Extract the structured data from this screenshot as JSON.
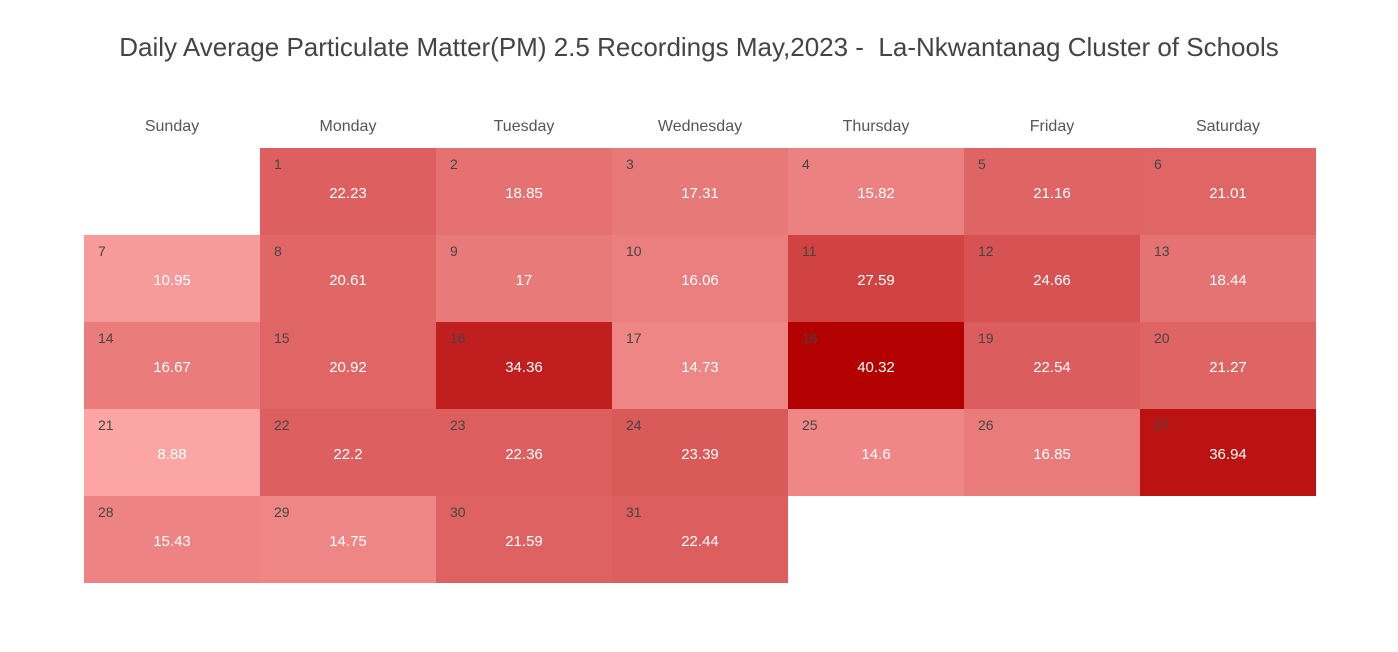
{
  "chart_data": {
    "type": "heatmap",
    "title": "Daily Average Particulate Matter(PM) 2.5 Recordings May,2023 -  La-Nkwantanag Cluster of Schools",
    "weekdays": [
      "Sunday",
      "Monday",
      "Tuesday",
      "Wednesday",
      "Thursday",
      "Friday",
      "Saturday"
    ],
    "first_weekday_index": 1,
    "days": [
      {
        "day": 1,
        "value": "22.23"
      },
      {
        "day": 2,
        "value": "18.85"
      },
      {
        "day": 3,
        "value": "17.31"
      },
      {
        "day": 4,
        "value": "15.82"
      },
      {
        "day": 5,
        "value": "21.16"
      },
      {
        "day": 6,
        "value": "21.01"
      },
      {
        "day": 7,
        "value": "10.95"
      },
      {
        "day": 8,
        "value": "20.61"
      },
      {
        "day": 9,
        "value": "17"
      },
      {
        "day": 10,
        "value": "16.06"
      },
      {
        "day": 11,
        "value": "27.59"
      },
      {
        "day": 12,
        "value": "24.66"
      },
      {
        "day": 13,
        "value": "18.44"
      },
      {
        "day": 14,
        "value": "16.67"
      },
      {
        "day": 15,
        "value": "20.92"
      },
      {
        "day": 16,
        "value": "34.36"
      },
      {
        "day": 17,
        "value": "14.73"
      },
      {
        "day": 18,
        "value": "40.32"
      },
      {
        "day": 19,
        "value": "22.54"
      },
      {
        "day": 20,
        "value": "21.27"
      },
      {
        "day": 21,
        "value": "8.88"
      },
      {
        "day": 22,
        "value": "22.2"
      },
      {
        "day": 23,
        "value": "22.36"
      },
      {
        "day": 24,
        "value": "23.39"
      },
      {
        "day": 25,
        "value": "14.6"
      },
      {
        "day": 26,
        "value": "16.85"
      },
      {
        "day": 27,
        "value": "36.94"
      },
      {
        "day": 28,
        "value": "15.43"
      },
      {
        "day": 29,
        "value": "14.75"
      },
      {
        "day": 30,
        "value": "21.59"
      },
      {
        "day": 31,
        "value": "22.44"
      }
    ],
    "colorscale": {
      "low": "#fca5a5",
      "high": "#b30000"
    }
  }
}
